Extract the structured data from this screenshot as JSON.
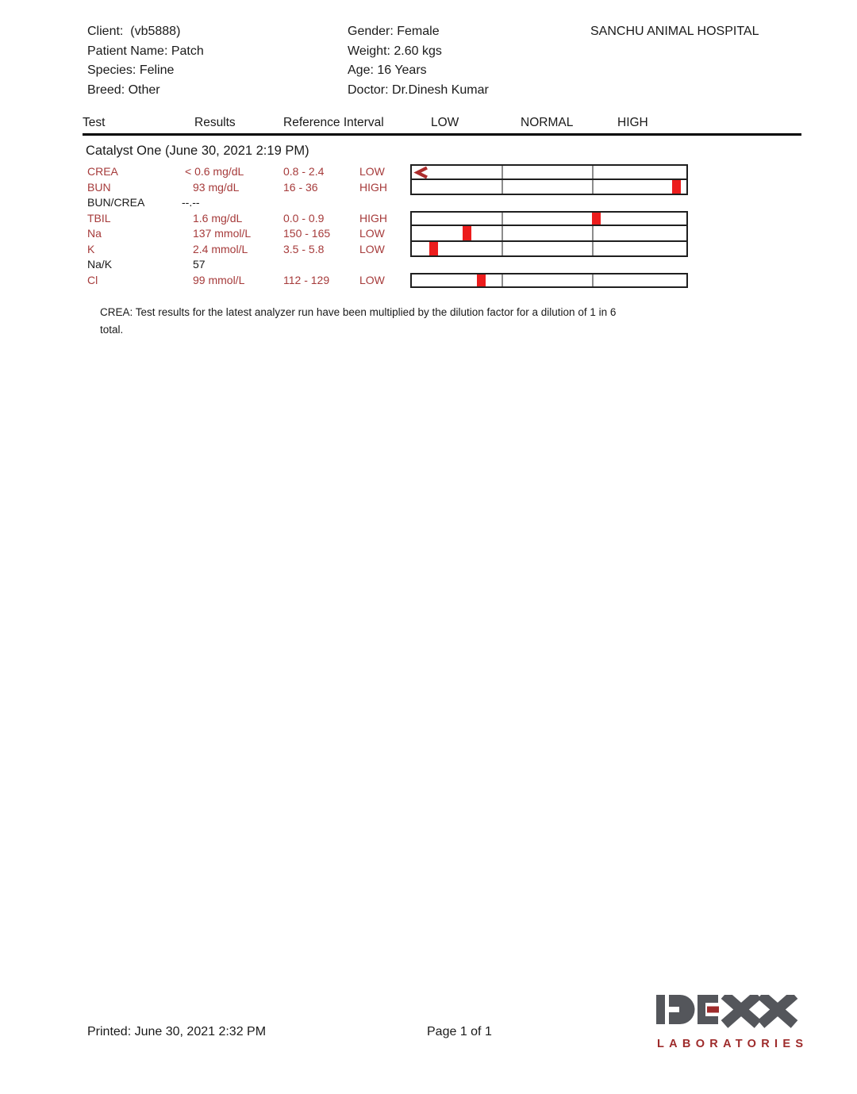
{
  "header": {
    "left_lines": [
      "Client:  (vb5888)",
      "Patient Name: Patch",
      "Species: Feline",
      "Breed: Other"
    ],
    "middle_lines": [
      "Gender: Female",
      "Weight: 2.60 kgs",
      "Age: 16 Years",
      "Doctor: Dr.Dinesh Kumar"
    ],
    "hospital": "SANCHU ANIMAL HOSPITAL"
  },
  "table": {
    "columns": {
      "test": "Test",
      "results": "Results",
      "reference": "Reference Interval",
      "low": "LOW",
      "normal": "NORMAL",
      "high": "HIGH"
    },
    "section_title": "Catalyst One (June 30, 2021 2:19 PM)",
    "bar_dividers_pct": [
      32.6,
      65.7
    ],
    "rows": [
      {
        "test": "CREA",
        "result": "< 0.6 mg/dL",
        "reference": "0.8 - 2.4",
        "flag": "LOW",
        "abnormal": true,
        "bar": true,
        "marker": "less",
        "marker_pos": 0.012
      },
      {
        "test": "BUN",
        "result": "93 mg/dL",
        "reference": "16 - 36",
        "flag": "HIGH",
        "abnormal": true,
        "bar": true,
        "marker": "block",
        "marker_pos": 0.963
      },
      {
        "test": "BUN/CREA",
        "result": "--.--",
        "reference": "",
        "flag": "",
        "abnormal": false,
        "bar": false,
        "marker": null,
        "marker_pos": null
      },
      {
        "test": "TBIL",
        "result": "1.6 mg/dL",
        "reference": "0.0 - 0.9",
        "flag": "HIGH",
        "abnormal": true,
        "bar": true,
        "marker": "block",
        "marker_pos": 0.671
      },
      {
        "test": "Na",
        "result": "137 mmol/L",
        "reference": "150 - 165",
        "flag": "LOW",
        "abnormal": true,
        "bar": true,
        "marker": "block",
        "marker_pos": 0.2
      },
      {
        "test": "K",
        "result": "2.4 mmol/L",
        "reference": "3.5 - 5.8",
        "flag": "LOW",
        "abnormal": true,
        "bar": true,
        "marker": "block",
        "marker_pos": 0.08
      },
      {
        "test": "Na/K",
        "result": "57",
        "reference": "",
        "flag": "",
        "abnormal": false,
        "bar": false,
        "marker": null,
        "marker_pos": null
      },
      {
        "test": "Cl",
        "result": "99 mmol/L",
        "reference": "112 - 129",
        "flag": "LOW",
        "abnormal": true,
        "bar": true,
        "marker": "block",
        "marker_pos": 0.254
      }
    ]
  },
  "note_lines": [
    "CREA: Test results for the latest analyzer run have been multiplied by the dilution factor for a dilution of 1 in 6",
    "total."
  ],
  "footer": {
    "printed": "Printed: June 30, 2021 2:32 PM",
    "page": "Page 1 of 1"
  },
  "logo": {
    "name": "IDEXX",
    "sub": "LABORATORIES",
    "gray": "#54565b",
    "red": "#9e2b2b"
  },
  "colors": {
    "abnormal_text": "#a63b3b",
    "marker": "#ec1c1c",
    "below_marker": "#ac2c2c",
    "bar_border": "#1f1f1f",
    "divider": "#8c8c8c"
  }
}
